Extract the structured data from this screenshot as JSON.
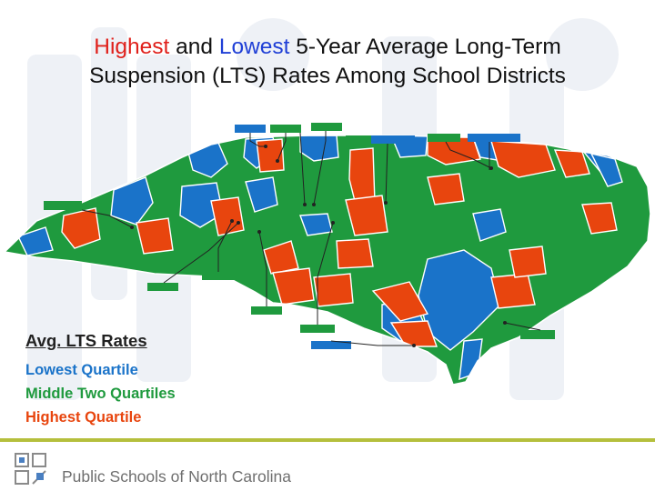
{
  "title": {
    "part_highest": "Highest",
    "part_and": " and ",
    "part_lowest": "Lowest",
    "part_rest_line1": " 5-Year Average Long-Term",
    "line2": "Suspension (LTS) Rates Among School Districts"
  },
  "legend": {
    "title": "Avg. LTS Rates",
    "items": [
      {
        "label": "Lowest Quartile",
        "color": "#1a73c9"
      },
      {
        "label": "Middle Two Quartiles",
        "color": "#1f9a3e"
      },
      {
        "label": "Highest Quartile",
        "color": "#e8450e"
      }
    ]
  },
  "map": {
    "region": "North Carolina school districts",
    "colors": {
      "lowest": "#1a73c9",
      "middle": "#1f9a3e",
      "highest": "#e8450e",
      "border": "#ffffff"
    }
  },
  "footer": {
    "org_name": "Public Schools of North Carolina",
    "accent_color": "#b5bf3c"
  }
}
